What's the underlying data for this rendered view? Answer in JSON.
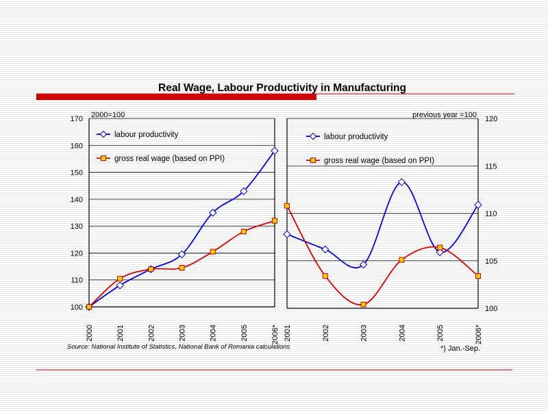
{
  "slide": {
    "title": "Real Wage, Labour Productivity in Manufacturing",
    "source": "Source: National Institute of Statistics, National Bank of Romania calculations",
    "footnote": "*) Jan.-Sep.",
    "colors": {
      "accent_bar": "#cc0000",
      "rule": "#cc0000",
      "labour_productivity": "#0000cc",
      "gross_real_wage": "#cc0000",
      "marker_fill_wage": "#ffcc00"
    }
  },
  "chart_data": [
    {
      "type": "line",
      "subtitle": "2000=100",
      "categories": [
        "2000",
        "2001",
        "2002",
        "2003",
        "2004",
        "2005",
        "2006*"
      ],
      "ylim": [
        100,
        170
      ],
      "yticks": [
        100,
        110,
        120,
        130,
        140,
        150,
        160,
        170
      ],
      "y_axis_side": "left",
      "grid": true,
      "legend": "top-left",
      "series": [
        {
          "name": "labour productivity",
          "values": [
            100,
            108,
            114,
            119.5,
            135,
            143,
            158
          ]
        },
        {
          "name": "gross real wage (based on PPI)",
          "values": [
            100,
            110.5,
            114,
            114.5,
            120.5,
            128,
            132
          ]
        }
      ]
    },
    {
      "type": "line",
      "subtitle": "previous year =100",
      "categories": [
        "2001",
        "2002",
        "2003",
        "2004",
        "2005",
        "2006*"
      ],
      "ylim": [
        100,
        120
      ],
      "yticks": [
        100,
        105,
        110,
        115,
        120
      ],
      "y_axis_side": "right",
      "grid": true,
      "legend": "top-left",
      "series": [
        {
          "name": "labour productivity",
          "values": [
            107.8,
            106.2,
            104.6,
            113.3,
            105.9,
            110.9
          ]
        },
        {
          "name": "gross real wage (based on PPI)",
          "values": [
            110.8,
            103.4,
            100.4,
            105.1,
            106.4,
            103.4
          ]
        }
      ]
    }
  ]
}
